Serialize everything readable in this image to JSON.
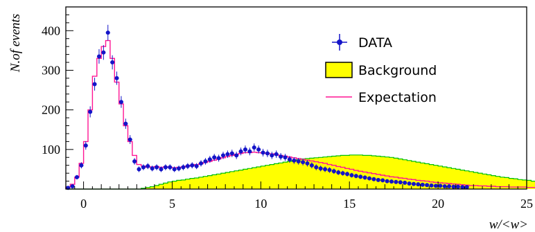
{
  "chart_data": {
    "type": "histogram",
    "xlabel": "w/<w>",
    "ylabel": "N.of events",
    "xlim": [
      -1,
      25
    ],
    "ylim": [
      0,
      460
    ],
    "x_ticks": [
      0,
      5,
      10,
      15,
      20,
      25
    ],
    "y_ticks": [
      100,
      200,
      300,
      400
    ],
    "bin_width": 0.25,
    "grid": false,
    "legend_position": "top-right",
    "colors": {
      "data": "#1414c8",
      "background_fill": "#ffff00",
      "background_line": "#00c000",
      "expectation": "#ff1493"
    },
    "series": [
      {
        "name": "DATA",
        "kind": "points-with-errors",
        "points": [
          [
            -0.875,
            3
          ],
          [
            -0.625,
            7
          ],
          [
            -0.375,
            30
          ],
          [
            -0.125,
            60
          ],
          [
            0.125,
            110
          ],
          [
            0.375,
            195
          ],
          [
            0.625,
            265
          ],
          [
            0.875,
            335
          ],
          [
            1.125,
            345
          ],
          [
            1.375,
            395
          ],
          [
            1.625,
            320
          ],
          [
            1.875,
            280
          ],
          [
            2.125,
            220
          ],
          [
            2.375,
            165
          ],
          [
            2.625,
            125
          ],
          [
            2.875,
            70
          ],
          [
            3.125,
            50
          ],
          [
            3.375,
            55
          ],
          [
            3.625,
            58
          ],
          [
            3.875,
            52
          ],
          [
            4.125,
            55
          ],
          [
            4.375,
            50
          ],
          [
            4.625,
            55
          ],
          [
            4.875,
            55
          ],
          [
            5.125,
            50
          ],
          [
            5.375,
            52
          ],
          [
            5.625,
            55
          ],
          [
            5.875,
            58
          ],
          [
            6.125,
            60
          ],
          [
            6.375,
            58
          ],
          [
            6.625,
            65
          ],
          [
            6.875,
            70
          ],
          [
            7.125,
            75
          ],
          [
            7.375,
            80
          ],
          [
            7.625,
            78
          ],
          [
            7.875,
            85
          ],
          [
            8.125,
            88
          ],
          [
            8.375,
            90
          ],
          [
            8.625,
            85
          ],
          [
            8.875,
            95
          ],
          [
            9.125,
            100
          ],
          [
            9.375,
            95
          ],
          [
            9.625,
            105
          ],
          [
            9.875,
            100
          ],
          [
            10.125,
            92
          ],
          [
            10.375,
            90
          ],
          [
            10.625,
            85
          ],
          [
            10.875,
            88
          ],
          [
            11.125,
            82
          ],
          [
            11.375,
            80
          ],
          [
            11.625,
            75
          ],
          [
            11.875,
            72
          ],
          [
            12.125,
            70
          ],
          [
            12.375,
            68
          ],
          [
            12.625,
            65
          ],
          [
            12.875,
            60
          ],
          [
            13.125,
            55
          ],
          [
            13.375,
            52
          ],
          [
            13.625,
            50
          ],
          [
            13.875,
            48
          ],
          [
            14.125,
            45
          ],
          [
            14.375,
            42
          ],
          [
            14.625,
            40
          ],
          [
            14.875,
            38
          ],
          [
            15.125,
            35
          ],
          [
            15.375,
            33
          ],
          [
            15.625,
            31
          ],
          [
            15.875,
            29
          ],
          [
            16.125,
            27
          ],
          [
            16.375,
            25
          ],
          [
            16.625,
            23
          ],
          [
            16.875,
            22
          ],
          [
            17.125,
            20
          ],
          [
            17.375,
            19
          ],
          [
            17.625,
            18
          ],
          [
            17.875,
            17
          ],
          [
            18.125,
            16
          ],
          [
            18.375,
            14
          ],
          [
            18.625,
            13
          ],
          [
            18.875,
            12
          ],
          [
            19.125,
            11
          ],
          [
            19.375,
            10
          ],
          [
            19.625,
            9
          ],
          [
            19.875,
            8
          ],
          [
            20.125,
            8
          ],
          [
            20.375,
            7
          ],
          [
            20.625,
            7
          ],
          [
            20.875,
            6
          ],
          [
            21.125,
            6
          ],
          [
            21.375,
            5
          ],
          [
            21.625,
            5
          ]
        ]
      },
      {
        "name": "Background",
        "kind": "filled-histogram",
        "edges_start": -1,
        "values": [
          0,
          0,
          0,
          0,
          0,
          0,
          0,
          0,
          0,
          0,
          0,
          0,
          0,
          0,
          0,
          0,
          0,
          2,
          4,
          6,
          9,
          12,
          15,
          18,
          20,
          22,
          23,
          25,
          27,
          28,
          30,
          32,
          34,
          36,
          38,
          40,
          42,
          44,
          46,
          48,
          50,
          52,
          54,
          56,
          58,
          60,
          62,
          64,
          66,
          68,
          70,
          72,
          74,
          76,
          77,
          78,
          79,
          80,
          81,
          82,
          83,
          84,
          85,
          85,
          86,
          86,
          86,
          85,
          85,
          84,
          83,
          82,
          81,
          80,
          78,
          76,
          74,
          72,
          70,
          68,
          66,
          64,
          62,
          60,
          58,
          56,
          54,
          52,
          50,
          48,
          46,
          44,
          42,
          40,
          38,
          36,
          34,
          32,
          30,
          29,
          27,
          26,
          24,
          23,
          22,
          20,
          19,
          18,
          17,
          16,
          15,
          14,
          13,
          12,
          11,
          10,
          9,
          9,
          8,
          8,
          7,
          7,
          6,
          6,
          5,
          5,
          4,
          4,
          4,
          3,
          3,
          3,
          3,
          2,
          2,
          2,
          2,
          2,
          2,
          1,
          1,
          1,
          1,
          1
        ]
      },
      {
        "name": "Expectation",
        "kind": "step-histogram",
        "edges_start": -1,
        "values": [
          5,
          12,
          30,
          65,
          120,
          200,
          285,
          330,
          360,
          375,
          330,
          270,
          215,
          160,
          120,
          85,
          62,
          58,
          55,
          56,
          57,
          55,
          56,
          55,
          54,
          55,
          56,
          58,
          60,
          62,
          64,
          67,
          70,
          73,
          76,
          79,
          82,
          85,
          88,
          90,
          92,
          92,
          93,
          92,
          91,
          90,
          89,
          87,
          85,
          83,
          81,
          79,
          77,
          75,
          73,
          71,
          69,
          67,
          65,
          62,
          60,
          57,
          55,
          52,
          50,
          47,
          45,
          43,
          41,
          39,
          37,
          35,
          33,
          31,
          30,
          28,
          27,
          25,
          24,
          22,
          21,
          20,
          18,
          17,
          16,
          15,
          14,
          13,
          12,
          11,
          10,
          9,
          9,
          8,
          8,
          7,
          7,
          6,
          6,
          6,
          5,
          5,
          5,
          5,
          4,
          4,
          4,
          4,
          3,
          3,
          3,
          3
        ]
      }
    ]
  },
  "legend": {
    "data_label": "DATA",
    "background_label": "Background",
    "expectation_label": "Expectation"
  }
}
